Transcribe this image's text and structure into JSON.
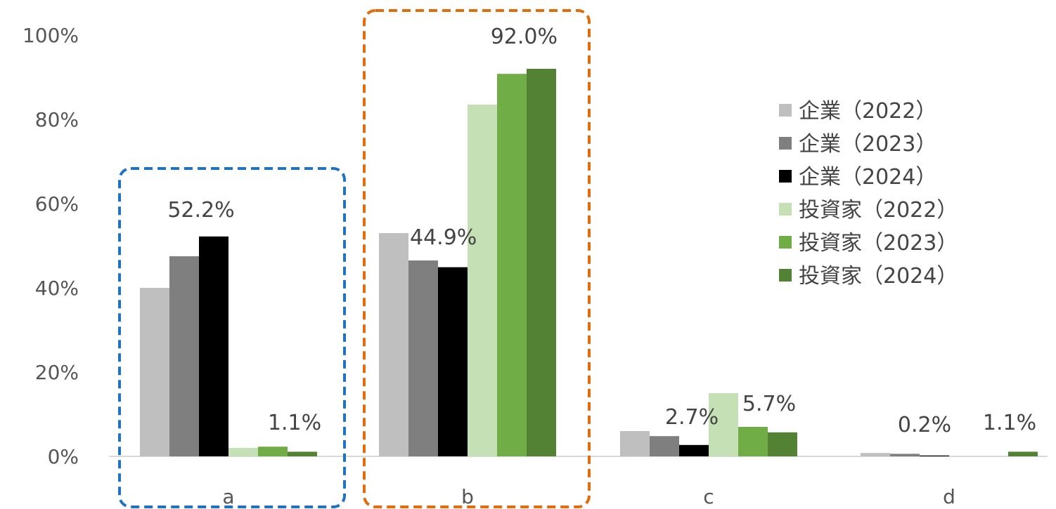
{
  "chart_data": {
    "type": "bar",
    "categories": [
      "a",
      "b",
      "c",
      "d"
    ],
    "ylim": [
      0,
      100
    ],
    "yticks": [
      "0%",
      "20%",
      "40%",
      "60%",
      "80%",
      "100%"
    ],
    "grid": false,
    "legend_position": "right",
    "series": [
      {
        "name": "企業（2022）",
        "color": "#bfbfbf",
        "values": [
          40.0,
          53.0,
          6.0,
          0.8
        ]
      },
      {
        "name": "企業（2023）",
        "color": "#7f7f7f",
        "values": [
          47.5,
          46.5,
          4.8,
          0.6
        ]
      },
      {
        "name": "企業（2024）",
        "color": "#000000",
        "values": [
          52.2,
          44.9,
          2.7,
          0.2
        ]
      },
      {
        "name": "投資家（2022）",
        "color": "#c5e0b4",
        "values": [
          2.0,
          83.5,
          15.0,
          0.0
        ]
      },
      {
        "name": "投資家（2023）",
        "color": "#70ad47",
        "values": [
          2.3,
          90.8,
          7.0,
          0.0
        ]
      },
      {
        "name": "投資家（2024）",
        "color": "#548235",
        "values": [
          1.1,
          92.0,
          5.7,
          1.1
        ]
      }
    ],
    "data_labels": [
      {
        "category": "a",
        "series": 2,
        "text": "52.2%"
      },
      {
        "category": "a",
        "series": 5,
        "text": "1.1%"
      },
      {
        "category": "b",
        "series": 2,
        "text": "44.9%"
      },
      {
        "category": "b",
        "series": 5,
        "text": "92.0%"
      },
      {
        "category": "c",
        "series": 2,
        "text": "2.7%"
      },
      {
        "category": "c",
        "series": 5,
        "text": "5.7%"
      },
      {
        "category": "d",
        "series": 2,
        "text": "0.2%"
      },
      {
        "category": "d",
        "series": 5,
        "text": "1.1%"
      }
    ],
    "highlight_boxes": [
      {
        "category": "a",
        "color": "#1f73c2"
      },
      {
        "category": "b",
        "color": "#e36c0a"
      }
    ]
  }
}
